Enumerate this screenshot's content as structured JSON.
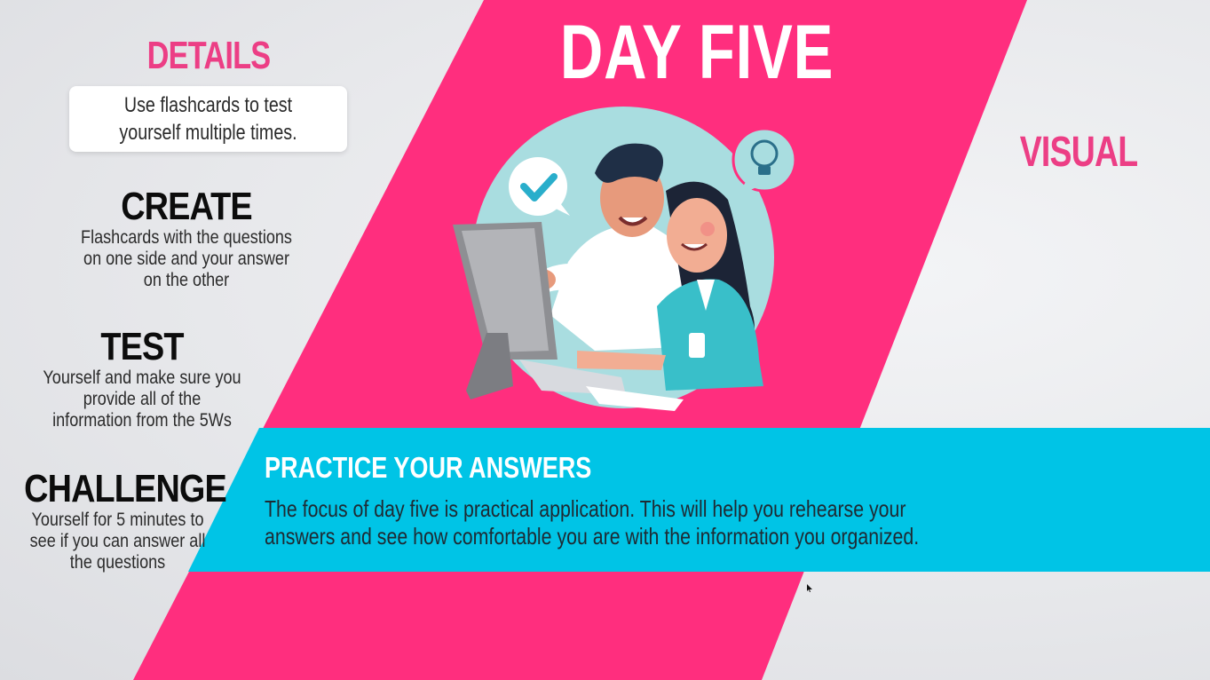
{
  "title": "DAY FIVE",
  "details": {
    "heading": "DETAILS",
    "text": "Use flashcards to test yourself multiple times."
  },
  "visual": {
    "heading": "VISUAL"
  },
  "steps": [
    {
      "heading": "CREATE",
      "text": "Flashcards with the questions on one side and your answer on the other"
    },
    {
      "heading": "TEST",
      "text": "Yourself and make sure you provide all of the information from the 5Ws"
    },
    {
      "heading": "CHALLENGE",
      "text": "Yourself for 5 minutes to see if you can answer all the questions"
    }
  ],
  "practice": {
    "heading": "PRACTICE YOUR ANSWERS",
    "text": "The focus of day five is practical application.  This will help you rehearse your answers and see how comfortable you are with the information you organized."
  },
  "colors": {
    "pink": "#ff2e7e",
    "cyan": "#00c4e6",
    "accent_text": "#ec3e85"
  },
  "illustration": {
    "icons": [
      "check-bubble-icon",
      "lightbulb-bubble-icon",
      "computer-monitor-icon"
    ]
  }
}
